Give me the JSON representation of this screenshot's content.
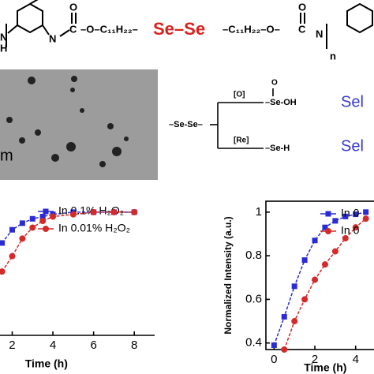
{
  "structure": {
    "n_left": "N",
    "h_left": "H",
    "nh": "N",
    "carbon": "C",
    "oxo": "O",
    "left_chain": "–O–C₁₁H₂₂–",
    "sese": "Se–Se",
    "right_chain": "–C₁₁H₂₂–O–",
    "n_index": "n"
  },
  "image": {
    "scale_label": "m"
  },
  "scheme": {
    "reactant": "–Se-Se–",
    "oxidation_reagent": "[O]",
    "reduction_reagent": "[Re]",
    "oxo": "O",
    "oxidation_product": "–Se-OH",
    "reduction_product": "–Se-H",
    "oxidation_label": "Sel",
    "reduction_label": "Sel"
  },
  "chart_data": [
    {
      "type": "line",
      "x_label": "Time (h)",
      "xlim": [
        1.4,
        9
      ],
      "xticks": [
        2,
        4,
        6,
        8
      ],
      "ylim": [
        0.44,
        1.05
      ],
      "series": [
        {
          "name": "In 0.1% H₂O₂",
          "color": "#2b2bd6",
          "marker": "square",
          "x": [
            1.5,
            2,
            2.5,
            3,
            3.5,
            4,
            5,
            6,
            7,
            8
          ],
          "values": [
            0.86,
            0.92,
            0.95,
            0.97,
            0.98,
            0.99,
            1.0,
            1.0,
            1.0,
            1.0
          ]
        },
        {
          "name": "In 0.01% H₂O₂",
          "color": "#d42a2a",
          "marker": "circle",
          "x": [
            1.5,
            2,
            2.5,
            3,
            3.5,
            4,
            5,
            6,
            7,
            8
          ],
          "values": [
            0.73,
            0.8,
            0.88,
            0.93,
            0.96,
            0.98,
            0.99,
            1.0,
            1.0,
            1.0
          ]
        }
      ]
    },
    {
      "type": "line",
      "x_label": "Time (h)",
      "y_label": "Normalized Intensity (a.u.)",
      "xlim": [
        -0.4,
        4.9
      ],
      "xticks": [
        0,
        2,
        4
      ],
      "ylim": [
        0.37,
        1.05
      ],
      "yticks": [
        0.4,
        0.6,
        0.8,
        1.0
      ],
      "series": [
        {
          "name": "In 0",
          "color": "#2b2bd6",
          "marker": "square",
          "x": [
            0,
            0.5,
            1,
            1.5,
            2,
            2.5,
            3,
            3.5,
            4,
            4.5
          ],
          "values": [
            0.39,
            0.52,
            0.66,
            0.78,
            0.87,
            0.93,
            0.96,
            0.98,
            0.99,
            1.0
          ]
        },
        {
          "name": "In 0",
          "color": "#d42a2a",
          "marker": "circle",
          "x": [
            0.5,
            1,
            1.5,
            2,
            2.5,
            3,
            3.5,
            4,
            4.5
          ],
          "values": [
            0.37,
            0.5,
            0.6,
            0.69,
            0.76,
            0.82,
            0.88,
            0.93,
            0.97
          ]
        }
      ]
    }
  ]
}
